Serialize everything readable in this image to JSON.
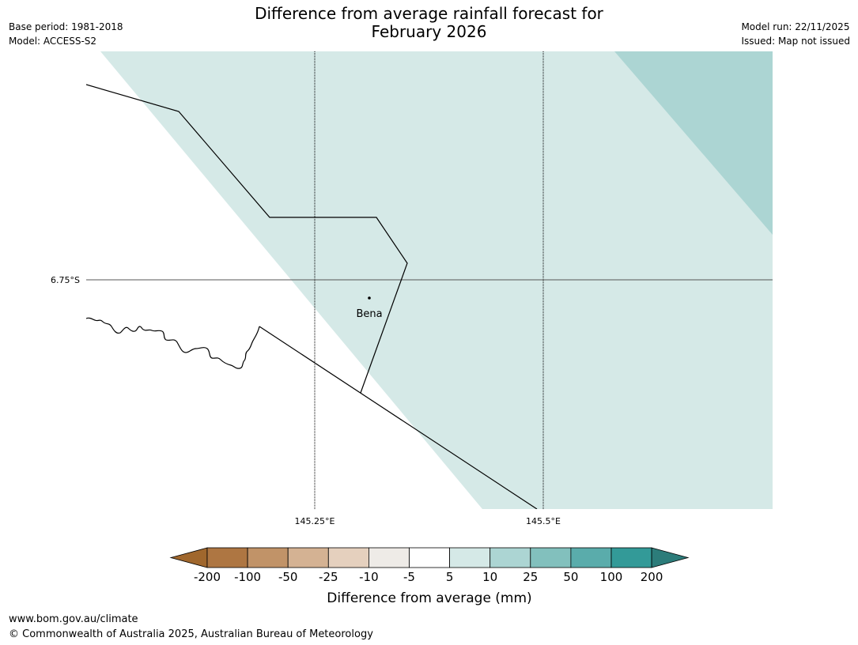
{
  "header": {
    "title_line1": "Difference from average rainfall forecast for",
    "title_line2": "February 2026",
    "base_period": "Base period: 1981-2018",
    "model": "Model: ACCESS-S2",
    "model_run": "Model run: 22/11/2025",
    "issued": "Issued: Map not issued"
  },
  "map": {
    "latitude_labels": [
      "6.75°S"
    ],
    "longitude_labels": [
      "145.25°E",
      "145.5°E"
    ],
    "places": [
      {
        "name": "Bena"
      }
    ],
    "fill_colors": {
      "5_to_10": "#d5e9e7",
      "10_to_25": "#acd5d3"
    }
  },
  "legend": {
    "title": "Difference from average (mm)",
    "tick_labels": [
      "-200",
      "-100",
      "-50",
      "-25",
      "-10",
      "-5",
      "5",
      "10",
      "25",
      "50",
      "100",
      "200"
    ],
    "colors": [
      "#a0672d",
      "#ae7642",
      "#c19368",
      "#d4b293",
      "#e5d0be",
      "#eeebe7",
      "#ffffff",
      "#d5e9e7",
      "#acd5d3",
      "#82c0bd",
      "#5aacab",
      "#339a98",
      "#2c7c7a"
    ]
  },
  "footer": {
    "url": "www.bom.gov.au/climate",
    "copyright": "© Commonwealth of Australia 2025, Australian Bureau of Meteorology"
  }
}
